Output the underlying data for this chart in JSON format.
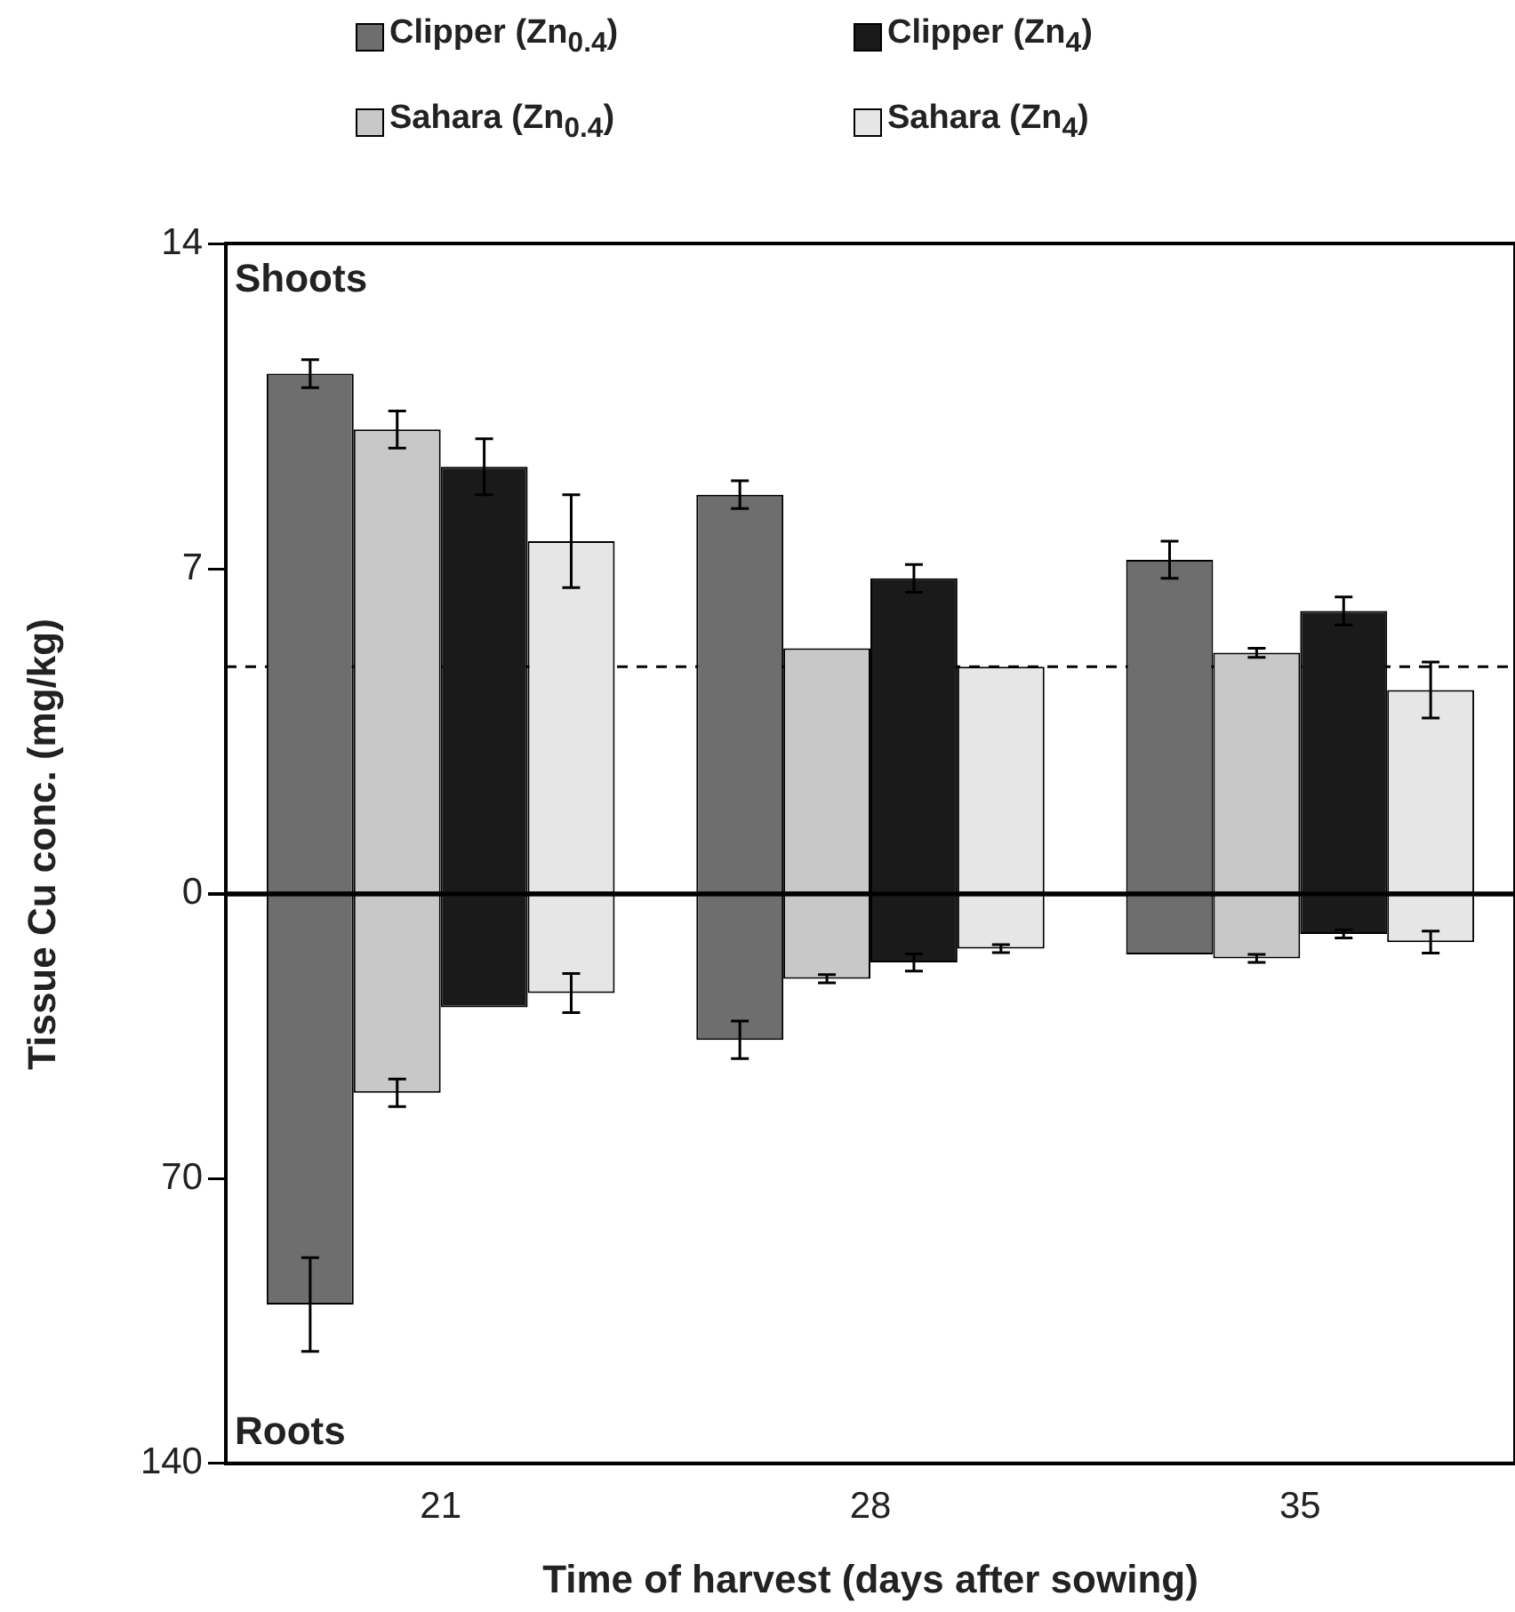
{
  "chart_data": [
    {
      "type": "bar",
      "ylabel": "Tissue Cu conc. (mg/kg)",
      "categories": [
        "21",
        "28",
        "35"
      ],
      "legend": "top",
      "tick_labels": "y",
      "ylim": [
        0,
        14
      ],
      "yticks": [
        {
          "value": 0,
          "label": null
        },
        7,
        14
      ],
      "annotations": [
        "Shoots"
      ],
      "ref_lines": [
        {
          "axis": "y",
          "value": 4.9,
          "line_style": "dashed",
          "color": "#000000"
        }
      ],
      "series": [
        {
          "name": "Clipper (Zn$_{0.4}$)",
          "color": "#6e6e6e",
          "values": [
            11.2,
            8.6,
            7.2
          ],
          "errors": [
            0.3,
            0.3,
            0.4
          ]
        },
        {
          "name": "Sahara (Zn$_{0.4}$)",
          "color": "#c8c8c8",
          "values": [
            10.0,
            5.3,
            5.2
          ],
          "errors": [
            0.4,
            null,
            0.1
          ]
        },
        {
          "name": "Clipper (Zn$_{4}$)",
          "color": "#1a1a1a",
          "values": [
            9.2,
            6.8,
            6.1
          ],
          "errors": [
            0.6,
            0.3,
            0.3
          ]
        },
        {
          "name": "Sahara (Zn$_{4}$)",
          "color": "#e6e6e6",
          "values": [
            7.6,
            4.9,
            4.4
          ],
          "errors": [
            1.0,
            null,
            0.6
          ]
        }
      ]
    },
    {
      "type": "bar",
      "xlabel": "Time of harvest (days after sowing)",
      "categories": [
        "21",
        "28",
        "35"
      ],
      "ylim": [
        140,
        0
      ],
      "yticks": [
        0,
        70,
        140
      ],
      "annotations": [
        "Roots"
      ],
      "series": [
        {
          "color": "#6e6e6e",
          "values": [
            101,
            36,
            15
          ],
          "errors": [
            11.5,
            4.6,
            null
          ]
        },
        {
          "color": "#c8c8c8",
          "values": [
            49,
            21,
            16
          ],
          "errors": [
            3.4,
            1,
            1
          ]
        },
        {
          "color": "#1a1a1a",
          "values": [
            28,
            17,
            10
          ],
          "errors": [
            null,
            2.1,
            1
          ]
        },
        {
          "color": "#e6e6e6",
          "values": [
            24.5,
            13.6,
            12
          ],
          "errors": [
            4.8,
            1,
            2.7
          ]
        }
      ]
    }
  ]
}
